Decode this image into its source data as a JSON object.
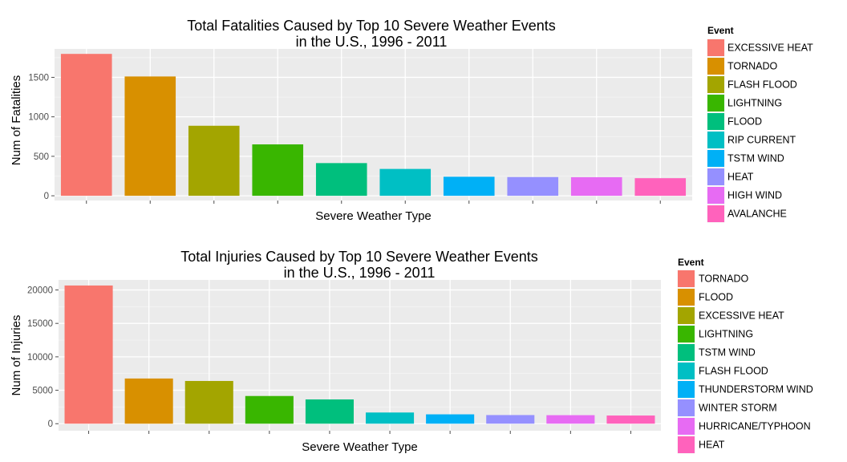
{
  "chart_data": [
    {
      "type": "bar",
      "title_line1": "Total Fatalities Caused by Top 10 Severe Weather Events",
      "title_line2": "in the U.S., 1996 - 2011",
      "xlabel": "Severe Weather Type",
      "ylabel": "Num of Fatalities",
      "ylim": [
        -60,
        1860
      ],
      "yticks": [
        0,
        500,
        1000,
        1500
      ],
      "grid": true,
      "legend_title": "Event",
      "legend_position": "right",
      "categories": [
        "EXCESSIVE HEAT",
        "TORNADO",
        "FLASH FLOOD",
        "LIGHTNING",
        "FLOOD",
        "RIP CURRENT",
        "TSTM WIND",
        "HEAT",
        "HIGH WIND",
        "AVALANCHE"
      ],
      "values": [
        1797,
        1511,
        887,
        651,
        414,
        340,
        241,
        237,
        235,
        223
      ],
      "colors": [
        "#F8766D",
        "#D89000",
        "#A3A500",
        "#39B600",
        "#00BF7D",
        "#00BFC4",
        "#00B0F6",
        "#9590FF",
        "#E76BF3",
        "#FF62BC"
      ]
    },
    {
      "type": "bar",
      "title_line1": "Total Injuries Caused by Top 10 Severe Weather Events",
      "title_line2": "in the U.S., 1996 - 2011",
      "xlabel": "Severe Weather Type",
      "ylabel": "Num of Injuries",
      "ylim": [
        -1050,
        21500
      ],
      "yticks": [
        0,
        5000,
        10000,
        15000,
        20000
      ],
      "grid": true,
      "legend_title": "Event",
      "legend_position": "right",
      "categories": [
        "TORNADO",
        "FLOOD",
        "EXCESSIVE HEAT",
        "LIGHTNING",
        "TSTM WIND",
        "FLASH FLOOD",
        "THUNDERSTORM WIND",
        "WINTER STORM",
        "HURRICANE/TYPHOON",
        "HEAT"
      ],
      "values": [
        20667,
        6758,
        6391,
        4141,
        3629,
        1674,
        1400,
        1292,
        1275,
        1222
      ],
      "colors": [
        "#F8766D",
        "#D89000",
        "#A3A500",
        "#39B600",
        "#00BF7D",
        "#00BFC4",
        "#00B0F6",
        "#9590FF",
        "#E76BF3",
        "#FF62BC"
      ]
    }
  ]
}
